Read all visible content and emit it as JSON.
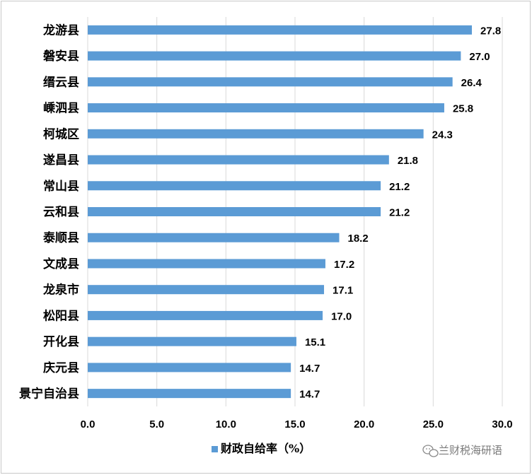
{
  "chart_data": {
    "type": "bar",
    "orientation": "horizontal",
    "categories": [
      "龙游县",
      "磐安县",
      "缙云县",
      "嵊泗县",
      "柯城区",
      "遂昌县",
      "常山县",
      "云和县",
      "泰顺县",
      "文成县",
      "龙泉市",
      "松阳县",
      "开化县",
      "庆元县",
      "景宁自治县"
    ],
    "series": [
      {
        "name": "财政自给率（%）",
        "values": [
          27.8,
          27.0,
          26.4,
          25.8,
          24.3,
          21.8,
          21.2,
          21.2,
          18.2,
          17.2,
          17.1,
          17.0,
          15.1,
          14.7,
          14.7
        ]
      }
    ],
    "value_labels": [
      "27.8",
      "27.0",
      "26.4",
      "25.8",
      "24.3",
      "21.8",
      "21.2",
      "21.2",
      "18.2",
      "17.2",
      "17.1",
      "17.0",
      "15.1",
      "14.7",
      "14.7"
    ],
    "xlim": [
      0,
      30
    ],
    "x_ticks": [
      "0.0",
      "5.0",
      "10.0",
      "15.0",
      "20.0",
      "25.0",
      "30.0"
    ],
    "grid": "vertical",
    "legend_position": "bottom",
    "bar_color": "#5b9bd5",
    "grid_color": "#d9d9d9"
  },
  "watermark": {
    "text": "兰财税海研语",
    "icon": "wechat-icon"
  }
}
